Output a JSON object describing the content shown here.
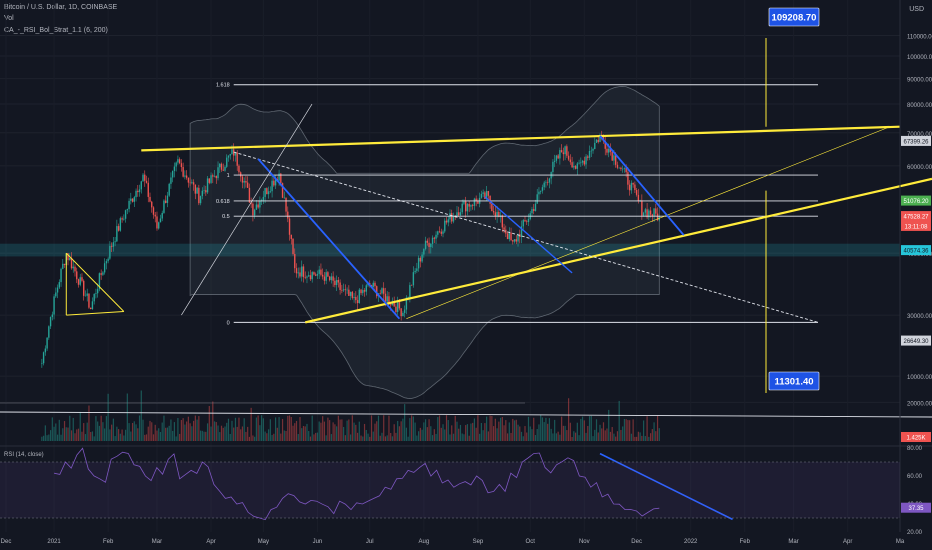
{
  "header": {
    "symbol_line": "Bitcoin / U.S. Dollar, 1D, COINBASE",
    "vol_label": "Vol",
    "strategy_label": "CA_-_RSI_Bol_Strat_1.1 (6, 200)",
    "currency": "USD"
  },
  "colors": {
    "background": "#131722",
    "candle_up": "#26a69a",
    "candle_down": "#ef5350",
    "trend_yellow": "#ffeb3b",
    "trend_blue": "#2962ff",
    "fib_line": "#e0e3eb",
    "rsi_line": "#7e57c2",
    "callout_blue": "#1e53e5"
  },
  "chart_data": [
    {
      "type": "candlestick",
      "title": "Bitcoin / U.S. Dollar, 1D, COINBASE",
      "y_scale": "log",
      "ylim": [
        18000,
        125000
      ],
      "y_ticks": [
        "110000.00",
        "100000.00",
        "90000.00",
        "80000.00",
        "70000.00",
        "60000.00",
        "40000.00",
        "30000.00",
        "20000.00",
        "10000.00"
      ],
      "x_ticks": [
        "Dec",
        "2021",
        "Feb",
        "Mar",
        "Apr",
        "May",
        "Jun",
        "Jul",
        "Aug",
        "Sep",
        "Oct",
        "Nov",
        "Dec",
        "2022",
        "Feb",
        "Mar",
        "Apr",
        "Ma"
      ],
      "price_path": [
        [
          "2020-12-25",
          24000
        ],
        [
          "2021-01-08",
          40000
        ],
        [
          "2021-01-22",
          31000
        ],
        [
          "2021-02-08",
          46000
        ],
        [
          "2021-02-21",
          57000
        ],
        [
          "2021-03-01",
          45000
        ],
        [
          "2021-03-13",
          61000
        ],
        [
          "2021-03-25",
          52000
        ],
        [
          "2021-04-14",
          64000
        ],
        [
          "2021-04-25",
          49000
        ],
        [
          "2021-05-10",
          58000
        ],
        [
          "2021-05-19",
          37000
        ],
        [
          "2021-06-05",
          36000
        ],
        [
          "2021-06-22",
          32000
        ],
        [
          "2021-07-01",
          34500
        ],
        [
          "2021-07-20",
          30500
        ],
        [
          "2021-08-01",
          41000
        ],
        [
          "2021-08-22",
          49500
        ],
        [
          "2021-09-06",
          52000
        ],
        [
          "2021-09-21",
          41500
        ],
        [
          "2021-10-01",
          48000
        ],
        [
          "2021-10-20",
          65000
        ],
        [
          "2021-10-28",
          59000
        ],
        [
          "2021-11-10",
          69000
        ],
        [
          "2021-11-25",
          57000
        ],
        [
          "2021-12-04",
          49000
        ],
        [
          "2021-12-14",
          47500
        ]
      ],
      "fib_levels": [
        {
          "label": "1.618",
          "price": 87500
        },
        {
          "label": "1",
          "price": 57500
        },
        {
          "label": "0.618",
          "price": 51000
        },
        {
          "label": "0.5",
          "price": 47500
        },
        {
          "label": "0",
          "price": 29000
        }
      ],
      "price_labels": [
        {
          "text": "67399.26",
          "price": 67399.26,
          "color": "#d1d4dc",
          "text_color": "#131722"
        },
        {
          "text": "51076.20",
          "price": 51076.2,
          "color": "#4caf50",
          "text_color": "#ffffff"
        },
        {
          "text": "47528.27",
          "price": 47528.27,
          "color": "#ef5350",
          "text_color": "#ffffff"
        },
        {
          "text": "13:11:08",
          "price": 45400,
          "color": "#ef5350",
          "text_color": "#ffffff"
        },
        {
          "text": "40574.36",
          "price": 40574.36,
          "color": "#26c6da",
          "text_color": "#131722"
        },
        {
          "text": "26649.30",
          "price": 26649.3,
          "color": "#d1d4dc",
          "text_color": "#131722"
        }
      ],
      "volume_label": "1.425K",
      "callouts": [
        {
          "text": "109208.70",
          "price": 109208.7
        },
        {
          "text": "11301.40",
          "price": 11301.4
        }
      ]
    },
    {
      "type": "line",
      "title": "RSI (14, close)",
      "ylim": [
        20,
        80
      ],
      "y_ticks": [
        "80.00",
        "60.00",
        "40.00",
        "20.00"
      ],
      "current_value_label": "37.35",
      "series": [
        {
          "values": [
            62,
            70,
            75,
            65,
            58,
            72,
            77,
            68,
            60,
            66,
            72,
            58,
            64,
            70,
            54,
            44,
            40,
            34,
            30,
            36,
            44,
            46,
            40,
            42,
            38,
            42,
            36,
            40,
            44,
            52,
            58,
            64,
            66,
            60,
            55,
            52,
            56,
            60,
            48,
            54,
            62,
            70,
            76,
            66,
            68,
            73,
            60,
            52,
            45,
            40,
            36,
            35,
            34,
            37
          ]
        }
      ]
    }
  ]
}
